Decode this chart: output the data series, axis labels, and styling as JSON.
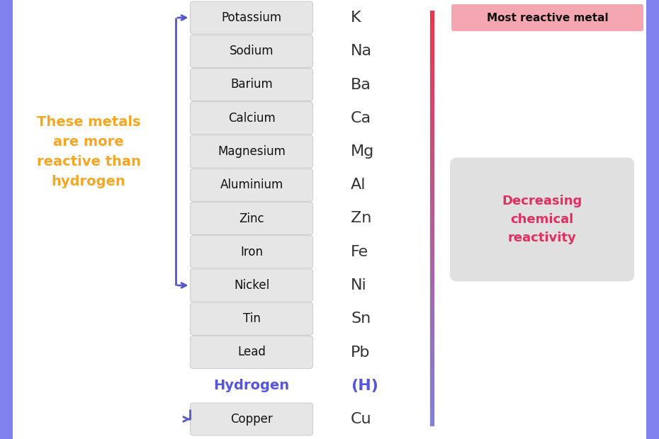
{
  "metals": [
    "Potassium",
    "Sodium",
    "Barium",
    "Calcium",
    "Magnesium",
    "Aluminium",
    "Zinc",
    "Iron",
    "Nickel",
    "Tin",
    "Lead",
    "Hydrogen",
    "Copper"
  ],
  "symbols": [
    "K",
    "Na",
    "Ba",
    "Ca",
    "Mg",
    "Al",
    "Zn",
    "Fe",
    "Ni",
    "Sn",
    "Pb",
    "(H)",
    "Cu"
  ],
  "is_hydrogen": [
    false,
    false,
    false,
    false,
    false,
    false,
    false,
    false,
    false,
    false,
    false,
    true,
    false
  ],
  "bg_color": "#ffffff",
  "left_border_color": "#8888ee",
  "right_border_color": "#8888ee",
  "box_color": "#e6e6e6",
  "box_border_color": "#cccccc",
  "metal_text_color": "#111111",
  "symbol_text_color": "#333333",
  "hydrogen_text_color": "#5555dd",
  "orange_text_color": "#f5a623",
  "most_reactive_bg": "#f4a7b0",
  "most_reactive_text": "#111111",
  "decreasing_bg": "#e0e0e0",
  "decreasing_text": "#e03060",
  "bracket_color": "#5555cc",
  "left_label": "These metals\nare more\nreactive than\nhydrogen",
  "most_reactive_label": "Most reactive metal",
  "decreasing_label": "Decreasing\nchemical\nreactivity"
}
